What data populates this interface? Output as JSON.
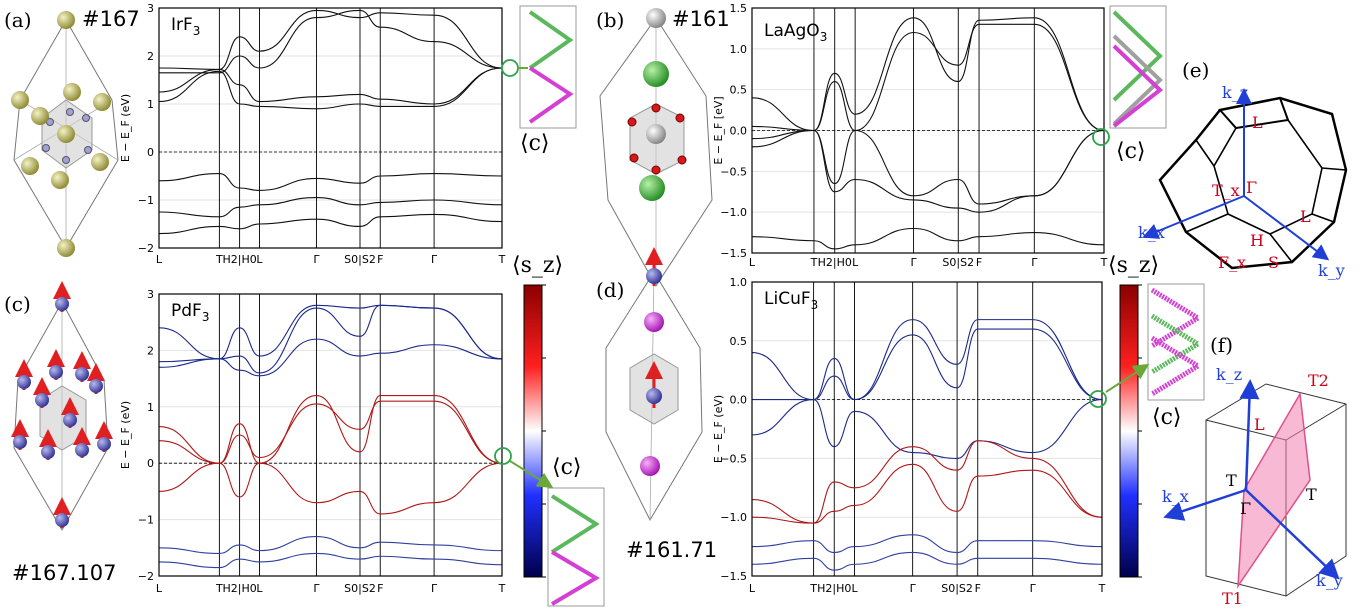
{
  "panels": {
    "a": {
      "letter": "(a)",
      "space_group": "#167"
    },
    "b": {
      "letter": "(b)",
      "space_group": "#161"
    },
    "c": {
      "letter": "(c)",
      "space_group": "#167.107"
    },
    "d": {
      "letter": "(d)",
      "space_group": "#161.71"
    },
    "e": {
      "letter": "(e)"
    },
    "f": {
      "letter": "(f)"
    }
  },
  "inset_symbol": "⟨c⟩",
  "colorbar_symbol": "⟨s_z⟩",
  "chart_data": [
    {
      "type": "line",
      "material": "IrF3",
      "material_base": "IrF",
      "material_sub": "3",
      "ylabel": "E − E_F (eV)",
      "ylim": [
        -2,
        3
      ],
      "yticks": [
        "3",
        "2",
        "1",
        "0",
        "−1",
        "−2"
      ],
      "kpath": [
        "L",
        "T",
        "H2|H0",
        "L",
        "Γ",
        "S0|S2",
        "F",
        "Γ",
        "T"
      ],
      "series": [
        {
          "values": [
            1.65,
            1.65,
            2.0,
            1.75,
            2.8,
            2.95,
            2.6,
            2.3,
            1.75
          ]
        },
        {
          "values": [
            1.75,
            1.72,
            2.4,
            2.1,
            2.95,
            2.8,
            2.9,
            2.85,
            1.75
          ]
        },
        {
          "values": [
            1.25,
            1.72,
            1.4,
            1.05,
            1.15,
            1.2,
            1.1,
            1.0,
            1.75
          ]
        },
        {
          "values": [
            1.05,
            1.68,
            1.0,
            0.95,
            0.9,
            1.0,
            0.95,
            0.95,
            1.75
          ]
        },
        {
          "values": [
            -0.6,
            -0.45,
            -0.75,
            -0.8,
            -0.55,
            -0.65,
            -0.5,
            -0.45,
            -0.5
          ]
        },
        {
          "values": [
            -1.25,
            -1.35,
            -1.15,
            -1.1,
            -0.95,
            -1.1,
            -1.05,
            -1.0,
            -1.1
          ]
        },
        {
          "values": [
            -1.7,
            -1.55,
            -1.6,
            -1.5,
            -1.4,
            -1.55,
            -1.35,
            -1.3,
            -1.45
          ]
        }
      ]
    },
    {
      "type": "line",
      "material": "LaAgO3",
      "material_base": "LaAgO",
      "material_sub": "3",
      "ylabel": "E − E_F [eV]",
      "ylim": [
        -1.5,
        1.5
      ],
      "yticks": [
        "1.5",
        "1.0",
        "0.5",
        "0.0",
        "−0.5",
        "−1.0",
        "−1.5"
      ],
      "kpath": [
        "L",
        "T",
        "H2|H0",
        "L",
        "Γ",
        "S0|S2",
        "F",
        "Γ",
        "T"
      ],
      "series": [
        {
          "values": [
            0.4,
            0.0,
            0.7,
            0.2,
            1.38,
            0.6,
            1.35,
            1.38,
            0.0
          ]
        },
        {
          "values": [
            -0.1,
            0.0,
            -0.75,
            -0.6,
            -0.85,
            -0.95,
            -1.0,
            -0.8,
            0.0
          ]
        },
        {
          "values": [
            0.05,
            0.0,
            0.6,
            0.0,
            1.2,
            0.8,
            1.3,
            1.3,
            0.0
          ]
        },
        {
          "values": [
            -0.2,
            0.0,
            -0.65,
            0.0,
            -0.8,
            -0.6,
            -0.9,
            -0.8,
            0.0
          ]
        },
        {
          "values": [
            -1.3,
            -1.35,
            -1.45,
            -1.4,
            -1.2,
            -1.35,
            -1.3,
            -1.25,
            -1.4
          ]
        }
      ]
    },
    {
      "type": "line",
      "material": "PdF3",
      "material_base": "PdF",
      "material_sub": "3",
      "ylabel": "E − E_F (eV)",
      "ylim": [
        -2,
        3
      ],
      "yticks": [
        "3",
        "2",
        "1",
        "0",
        "−1",
        "−2"
      ],
      "kpath": [
        "L",
        "T",
        "H2|H0",
        "L",
        "Γ",
        "S0|S2",
        "F",
        "Γ",
        "T"
      ],
      "colorbar": {
        "label": "⟨s_z⟩",
        "colors": [
          "#8b0000",
          "#ff2020",
          "#ffffff",
          "#2030ff",
          "#00004a"
        ]
      },
      "series": [
        {
          "spin": "down",
          "values": [
            1.8,
            1.85,
            2.4,
            1.9,
            2.8,
            2.75,
            2.8,
            2.75,
            1.85
          ]
        },
        {
          "spin": "down",
          "values": [
            2.4,
            1.85,
            1.9,
            1.6,
            2.75,
            2.25,
            2.8,
            2.75,
            1.85
          ]
        },
        {
          "spin": "down",
          "values": [
            1.7,
            1.85,
            1.65,
            1.55,
            2.2,
            1.9,
            1.95,
            2.1,
            1.85
          ]
        },
        {
          "spin": "up",
          "values": [
            0.65,
            0.0,
            0.7,
            0.0,
            1.2,
            0.2,
            1.2,
            1.2,
            0.0
          ]
        },
        {
          "spin": "up",
          "values": [
            -0.5,
            0.0,
            -0.6,
            0.0,
            -0.7,
            -0.5,
            -0.9,
            -0.7,
            0.0
          ]
        },
        {
          "spin": "up",
          "values": [
            0.4,
            0.0,
            0.5,
            0.1,
            1.05,
            0.6,
            1.1,
            1.1,
            0.0
          ]
        },
        {
          "spin": "mixed",
          "values": [
            -1.5,
            -1.6,
            -1.45,
            -1.55,
            -1.3,
            -1.5,
            -1.4,
            -1.45,
            -1.55
          ]
        },
        {
          "spin": "mixed",
          "values": [
            -1.75,
            -1.85,
            -1.7,
            -1.75,
            -1.6,
            -1.7,
            -1.65,
            -1.7,
            -1.8
          ]
        }
      ]
    },
    {
      "type": "line",
      "material": "LiCuF3",
      "material_base": "LiCuF",
      "material_sub": "3",
      "ylabel": "E − E_F (eV)",
      "ylim": [
        -1.5,
        1.0
      ],
      "yticks": [
        "1.0",
        "0.5",
        "0.0",
        "−0.5",
        "−1.0",
        "−1.5"
      ],
      "kpath": [
        "L",
        "T",
        "H2|H0",
        "L",
        "Γ",
        "S0|S2",
        "F",
        "Γ",
        "T"
      ],
      "colorbar": {
        "label": "⟨s_z⟩",
        "colors": [
          "#8b0000",
          "#ff2020",
          "#ffffff",
          "#2030ff",
          "#00004a"
        ]
      },
      "series": [
        {
          "spin": "down",
          "values": [
            0.4,
            0.0,
            0.35,
            0.0,
            0.68,
            0.3,
            0.68,
            0.68,
            0.0
          ]
        },
        {
          "spin": "down",
          "values": [
            -0.3,
            0.0,
            -0.4,
            -0.1,
            -0.45,
            -0.5,
            -0.35,
            -0.45,
            0.0
          ]
        },
        {
          "spin": "down",
          "values": [
            0.0,
            0.0,
            0.2,
            0.0,
            0.55,
            0.1,
            0.6,
            0.6,
            0.0
          ]
        },
        {
          "spin": "up",
          "values": [
            -0.85,
            -1.05,
            -0.7,
            -0.75,
            -0.4,
            -0.6,
            -0.35,
            -0.5,
            -1.0
          ]
        },
        {
          "spin": "up",
          "values": [
            -1.0,
            -1.05,
            -0.95,
            -0.9,
            -0.55,
            -0.95,
            -0.65,
            -0.6,
            -1.0
          ]
        },
        {
          "spin": "mixed",
          "values": [
            -1.25,
            -1.2,
            -1.3,
            -1.25,
            -1.15,
            -1.3,
            -1.2,
            -1.2,
            -1.25
          ]
        },
        {
          "spin": "mixed",
          "values": [
            -1.4,
            -1.35,
            -1.45,
            -1.4,
            -1.3,
            -1.4,
            -1.35,
            -1.35,
            -1.4
          ]
        }
      ]
    }
  ],
  "bz_e": {
    "labels": [
      "k_z",
      "L",
      "Γ",
      "T_x",
      "L",
      "k_x",
      "H",
      "F_x",
      "S",
      "k_y"
    ]
  },
  "bz_f": {
    "labels": [
      "k_z",
      "T2",
      "L",
      "T",
      "T",
      "Γ",
      "k_x",
      "T1",
      "k_y"
    ]
  },
  "colors": {
    "axis_arrow": "#1f3fd6",
    "label_red": "#d0021b",
    "green": "#4caf50",
    "magenta": "#d43fd4",
    "gray": "#a0a0a0",
    "plane": "#f080b0"
  }
}
